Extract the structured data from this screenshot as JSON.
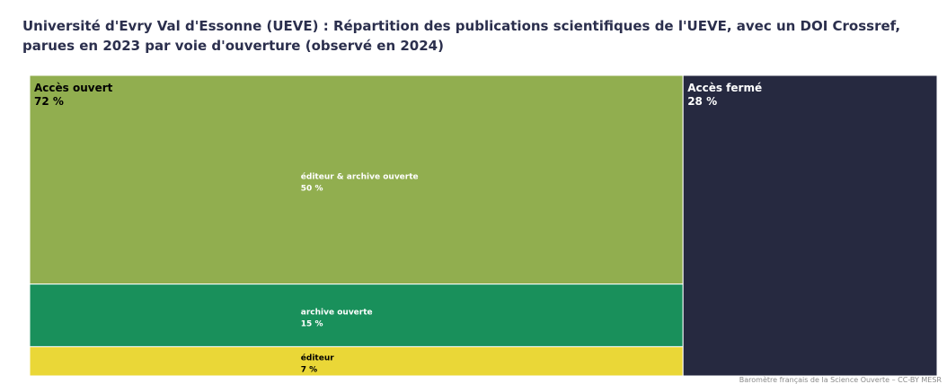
{
  "title": "Université d'Evry Val d'Essonne (UEVE) : Répartition des publications scientifiques de l'UEVE, avec un DOI Crossref, parues en 2023 par voie d'ouverture (observé en 2024)",
  "credit": "Baromètre français de la Science Ouverte – CC-BY MESR",
  "chart_data": {
    "type": "treemap",
    "title": "Université d'Evry Val d'Essonne (UEVE) : Répartition des publications scientifiques de l'UEVE, avec un DOI Crossref, parues en 2023 par voie d'ouverture (observé en 2024)",
    "groups": [
      {
        "name": "Accès ouvert",
        "value_label": "72 %",
        "value": 72,
        "color": "#91ae4f",
        "children": [
          {
            "name": "éditeur & archive ouverte",
            "value_label": "50 %",
            "value": 50,
            "color": "#91ae4f",
            "text_color": "#ffffff"
          },
          {
            "name": "archive ouverte",
            "value_label": "15 %",
            "value": 15,
            "color": "#19905b",
            "text_color": "#ffffff"
          },
          {
            "name": "éditeur",
            "value_label": "7 %",
            "value": 7,
            "color": "#ead737",
            "text_color": "#000000"
          }
        ]
      },
      {
        "name": "Accès fermé",
        "value_label": "28 %",
        "value": 28,
        "color": "#262940",
        "text_color": "#ffffff",
        "children": []
      }
    ]
  }
}
